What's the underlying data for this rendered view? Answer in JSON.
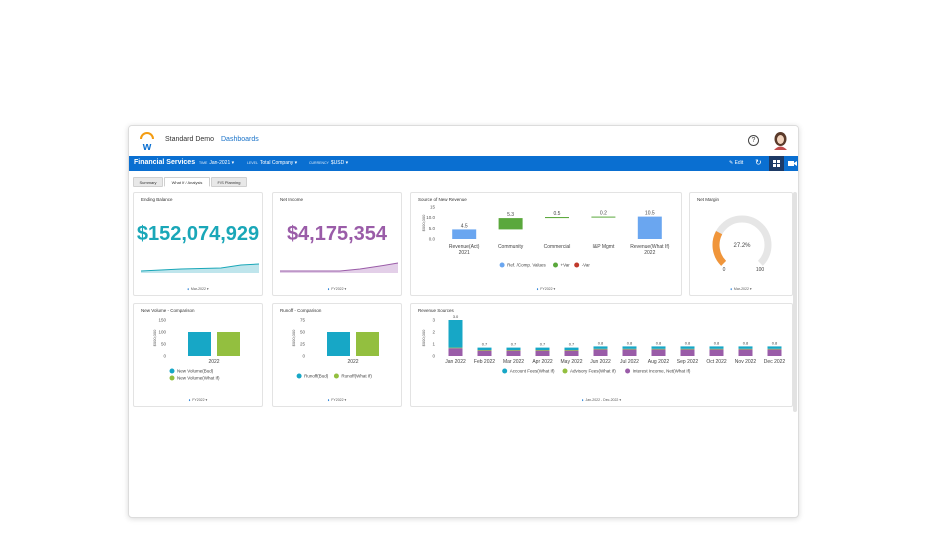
{
  "header": {
    "app_title": "Standard Demo",
    "nav_link": "Dashboards",
    "help_label": "?"
  },
  "toolbar": {
    "title": "Financial Services",
    "filters": [
      {
        "key": "TIME",
        "value": "Jan-2021"
      },
      {
        "key": "LEVEL",
        "value": "Total Company"
      },
      {
        "key": "CURRENCY",
        "value": "$USD"
      }
    ],
    "edit_label": "Edit",
    "refresh_glyph": "↻"
  },
  "tabs": [
    {
      "label": "Summary",
      "active": false
    },
    {
      "label": "What If / Analysis",
      "active": true
    },
    {
      "label": "F/S Planning",
      "active": false
    }
  ],
  "cards": {
    "ending_balance": {
      "title": "Ending Balance",
      "value": "$152,074,929",
      "color": "#1aa7b8",
      "footer": "Mar-2022"
    },
    "net_income": {
      "title": "Net Income",
      "value": "$4,175,354",
      "color": "#9a5ca8",
      "footer": "FY2022"
    },
    "net_margin": {
      "title": "Net Margin",
      "value": "27.2%",
      "min": "0",
      "max": "100",
      "footer": "Mar-2022"
    },
    "source_revenue": {
      "title": "Source of New Revenue",
      "footer": "FY2022"
    },
    "new_volume": {
      "title": "New Volume - Comparison",
      "footer": "FY2022"
    },
    "runoff": {
      "title": "Runoff - Comparison",
      "footer": "FY2022"
    },
    "revenue_sources": {
      "title": "Revenue Sources",
      "footer": "Jan-2022 - Dec-2022"
    }
  },
  "chart_data": [
    {
      "type": "bar",
      "name_ref": "source_revenue",
      "ylabel": "$000,000",
      "yticks": [
        "0.0",
        "5.0",
        "10.0",
        "15"
      ],
      "ylim": [
        0,
        15
      ],
      "categories": [
        "Revenue(Act)\n2021",
        "Community",
        "Commercial",
        "I&P Mgmt",
        "Revenue(What If)\n2022"
      ],
      "values": [
        4.5,
        5.3,
        0.5,
        0.2,
        10.5
      ],
      "labels": [
        "4.5",
        "5.3",
        "0.5",
        "0.2",
        "10.5"
      ],
      "kinds": [
        "ref",
        "pos",
        "pos",
        "pos",
        "ref"
      ],
      "legend": [
        "Ref. /Comp. Values",
        "+Var",
        "-Var"
      ],
      "colors": {
        "ref": "#6aa6f0",
        "pos": "#5aa83c",
        "neg": "#c0392b"
      }
    },
    {
      "type": "bar",
      "name_ref": "new_volume",
      "ylabel": "$000,000",
      "yticks": [
        "0",
        "50",
        "100",
        "150"
      ],
      "ylim": [
        0,
        150
      ],
      "categories": [
        "2022"
      ],
      "series": [
        {
          "name": "New Volume(Bud)",
          "values": [
            100
          ],
          "color": "#17a7c6"
        },
        {
          "name": "New Volume(What If)",
          "values": [
            100
          ],
          "color": "#93bf3f"
        }
      ]
    },
    {
      "type": "bar",
      "name_ref": "runoff",
      "ylabel": "$000,000",
      "yticks": [
        "0",
        "25",
        "50",
        "75"
      ],
      "ylim": [
        0,
        75
      ],
      "categories": [
        "2022"
      ],
      "series": [
        {
          "name": "Runoff(Bud)",
          "values": [
            50
          ],
          "color": "#17a7c6"
        },
        {
          "name": "Runoff(What If)",
          "values": [
            50
          ],
          "color": "#93bf3f"
        }
      ]
    },
    {
      "type": "bar",
      "name_ref": "revenue_sources",
      "ylabel": "$000,000",
      "yticks": [
        "0",
        "1",
        "2",
        "3"
      ],
      "ylim": [
        0,
        3
      ],
      "categories": [
        "Jan 2022",
        "Feb 2022",
        "Mar 2022",
        "Apr 2022",
        "May 2022",
        "Jun 2022",
        "Jul 2022",
        "Aug 2022",
        "Sep 2022",
        "Oct 2022",
        "Nov 2022",
        "Dec 2022"
      ],
      "totals": [
        "3.0",
        "0.7",
        "0.7",
        "0.7",
        "0.7",
        "0.8",
        "0.8",
        "0.8",
        "0.8",
        "0.8",
        "0.8",
        "0.8"
      ],
      "series": [
        {
          "name": "Account Fees(What If)",
          "values": [
            2.3,
            0.2,
            0.2,
            0.2,
            0.2,
            0.2,
            0.2,
            0.2,
            0.2,
            0.2,
            0.2,
            0.2
          ],
          "color": "#17a7c6"
        },
        {
          "name": "Advisory Fees(What If)",
          "values": [
            0.05,
            0.05,
            0.05,
            0.05,
            0.05,
            0.05,
            0.05,
            0.05,
            0.05,
            0.05,
            0.05,
            0.05
          ],
          "color": "#93bf3f"
        },
        {
          "name": "Interest Income, Net(What If)",
          "values": [
            0.65,
            0.45,
            0.45,
            0.45,
            0.45,
            0.55,
            0.55,
            0.55,
            0.55,
            0.55,
            0.55,
            0.55
          ],
          "color": "#9a5ca8"
        }
      ]
    },
    {
      "type": "gauge",
      "name_ref": "net_margin",
      "value": 27.2,
      "range": [
        0,
        100
      ],
      "colors": {
        "fill": "#f0953a",
        "track": "#e6e6e6"
      }
    }
  ]
}
